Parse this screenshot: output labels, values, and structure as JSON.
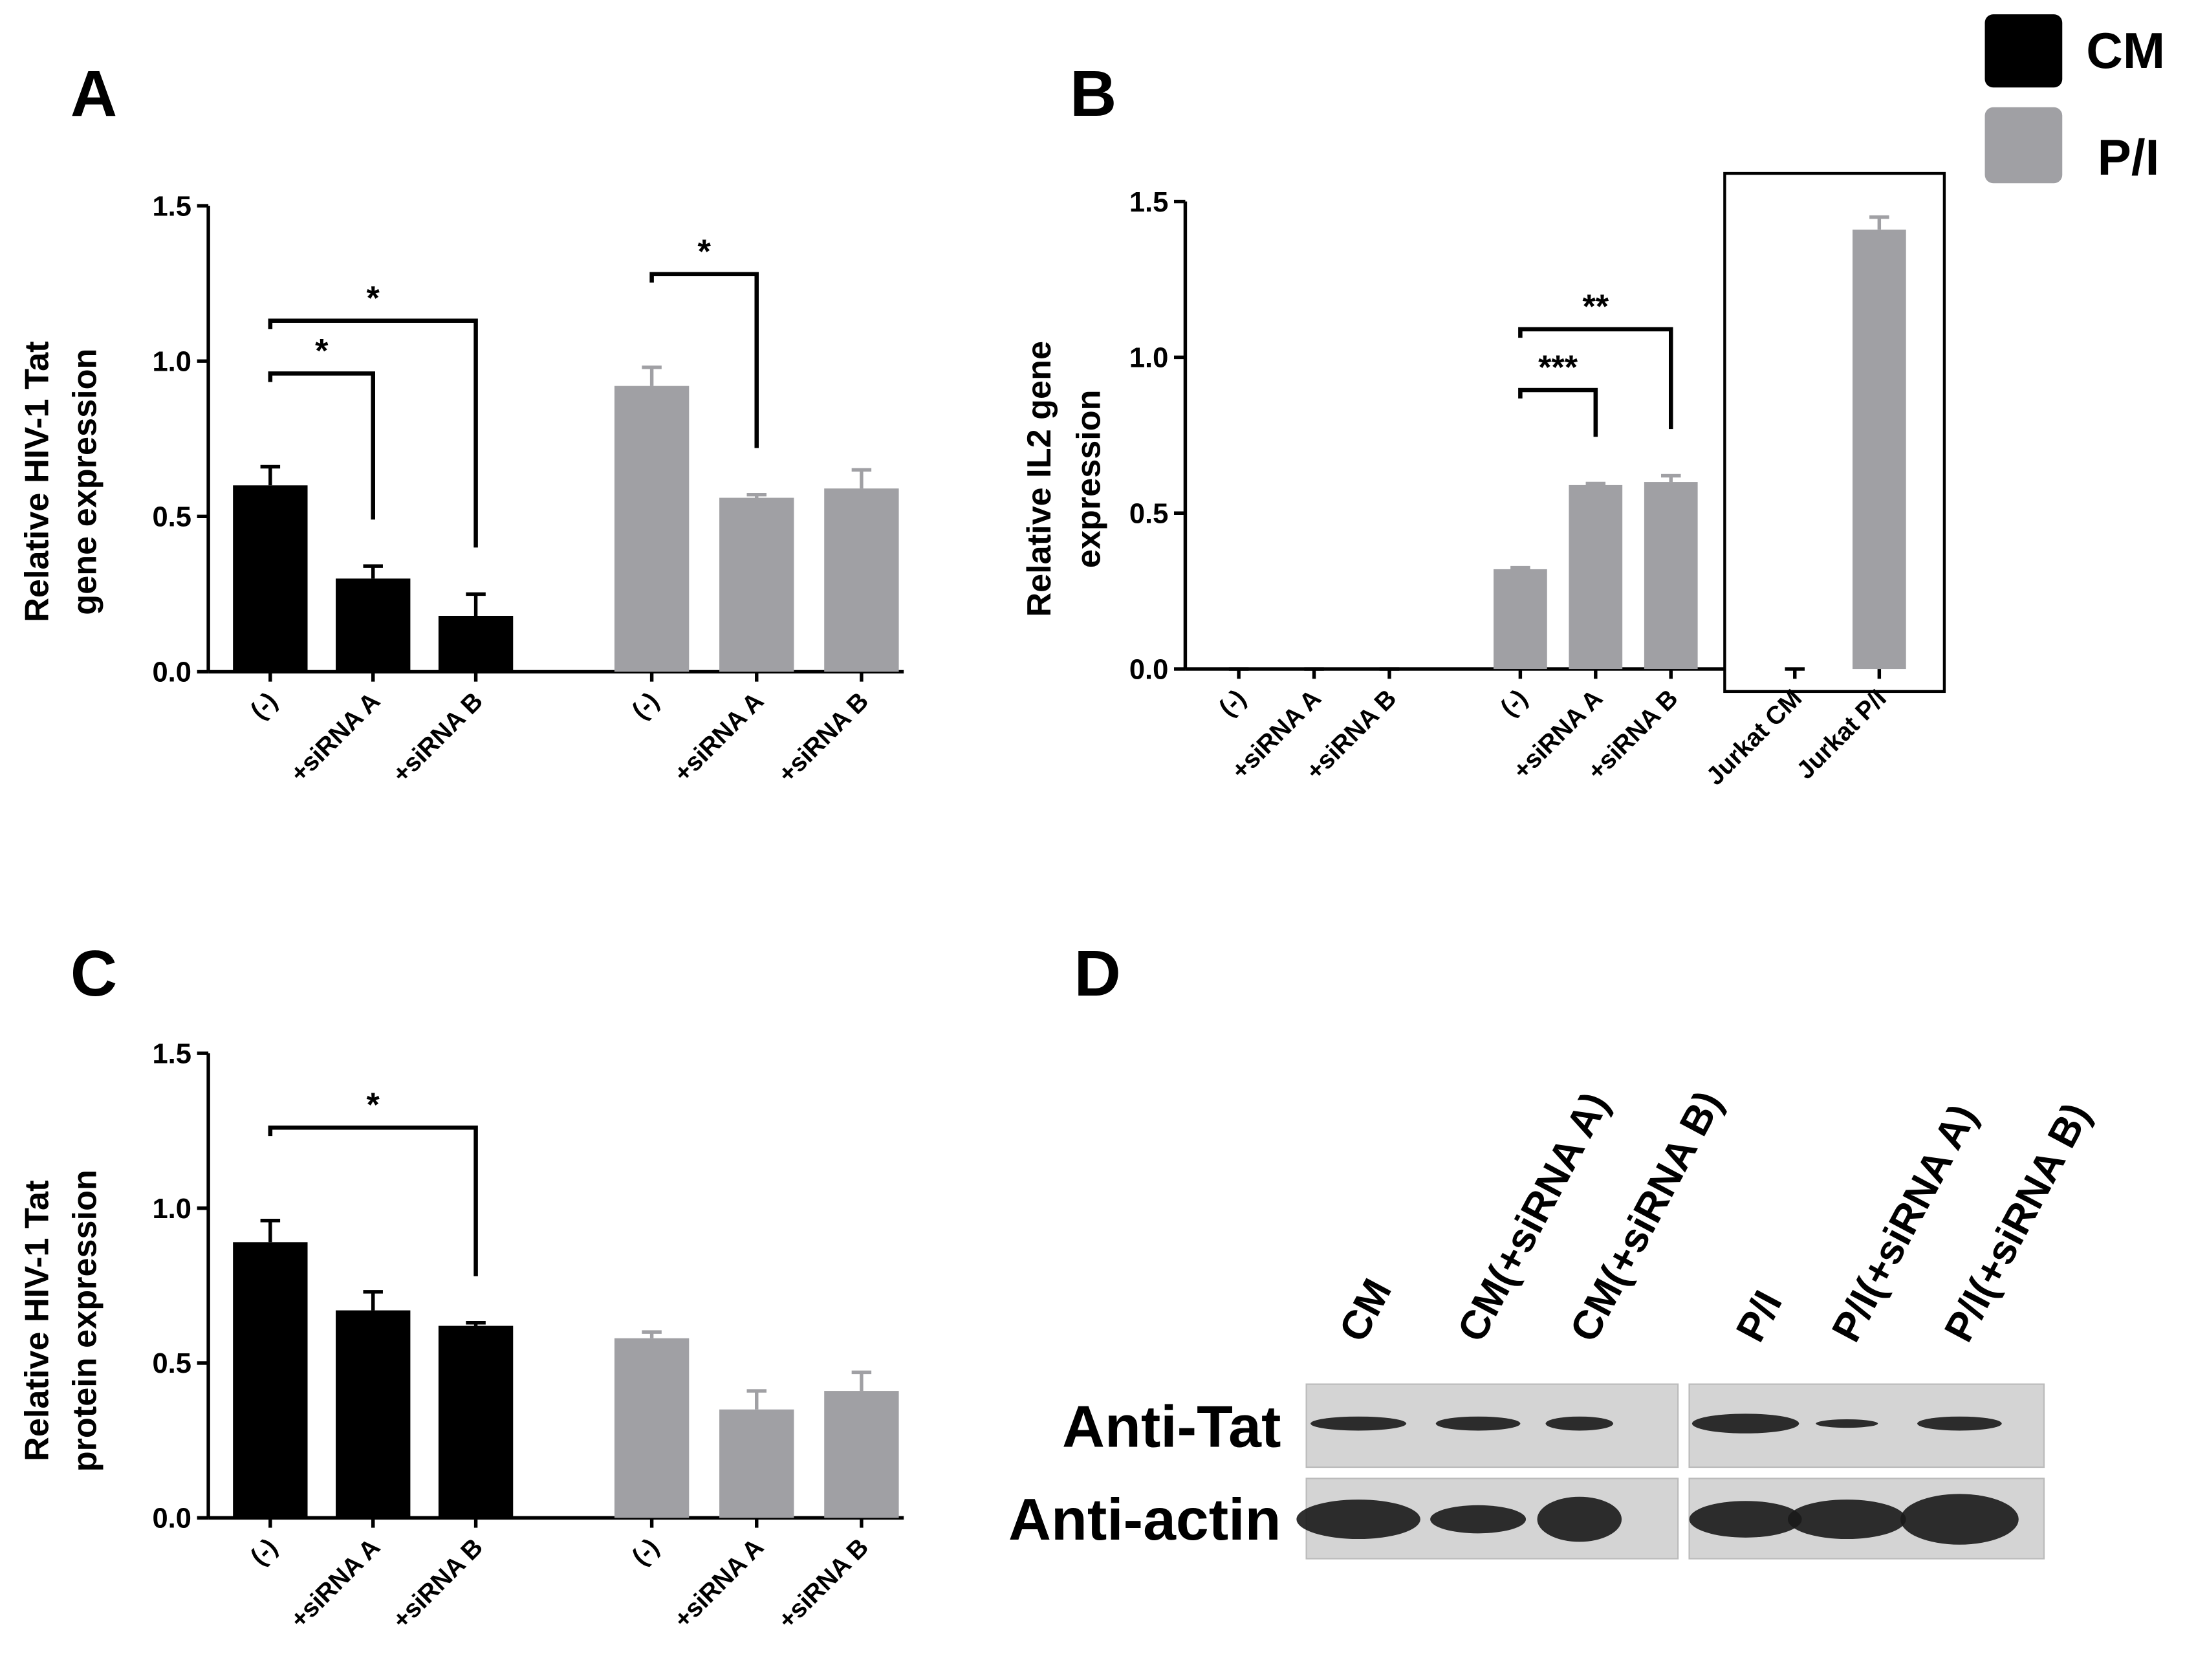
{
  "legend": [
    {
      "name": "CM",
      "color": "#000000"
    },
    {
      "name": "P/I",
      "color": "#a0a0a4"
    }
  ],
  "chart_data": [
    {
      "type": "bar",
      "panel": "A",
      "ylabel": [
        "Relative HIV-1 Tat",
        "gene expression"
      ],
      "ylim": [
        0,
        1.5
      ],
      "yticks": [
        {
          "value": 0,
          "label": "0.0"
        },
        {
          "value": 0.5,
          "label": "0.5"
        },
        {
          "value": 1,
          "label": "1.0"
        },
        {
          "value": 1.5,
          "label": "1.5"
        }
      ],
      "groups": [
        {
          "color": "#000000",
          "categories": [
            "(-)",
            "+siRNA A",
            "+siRNA B"
          ],
          "values": [
            0.6,
            0.3,
            0.18
          ],
          "errors": [
            0.06,
            0.04,
            0.07
          ]
        },
        {
          "color": "#a0a0a4",
          "categories": [
            "(-)",
            "+siRNA A",
            "+siRNA B"
          ],
          "values": [
            0.92,
            0.56,
            0.59
          ],
          "errors": [
            0.06,
            0.01,
            0.06
          ]
        }
      ],
      "significance": [
        {
          "label": "*",
          "group": 0,
          "from": 0,
          "to": 1
        },
        {
          "label": "*",
          "group": 0,
          "from": 0,
          "to": 2
        },
        {
          "label": "*",
          "group": 1,
          "from": 0,
          "to": 1
        }
      ]
    },
    {
      "type": "bar",
      "panel": "B",
      "ylabel": [
        "Relative IL2 gene",
        "expression"
      ],
      "ylim": [
        0,
        1.5
      ],
      "yticks": [
        {
          "value": 0,
          "label": "0.0"
        },
        {
          "value": 0.5,
          "label": "0.5"
        },
        {
          "value": 1,
          "label": "1.0"
        },
        {
          "value": 1.5,
          "label": "1.5"
        }
      ],
      "groups": [
        {
          "color": "#000000",
          "categories": [
            "(-)",
            "+siRNA A",
            "+siRNA B"
          ],
          "values": [
            0,
            0,
            0
          ],
          "errors": [
            0,
            0,
            0
          ]
        },
        {
          "color": "#a0a0a4",
          "categories": [
            "(-)",
            "+siRNA A",
            "+siRNA B"
          ],
          "values": [
            0.32,
            0.59,
            0.6
          ],
          "errors": [
            0.005,
            0.005,
            0.02
          ]
        },
        {
          "colors": [
            "#000000",
            "#a0a0a4"
          ],
          "categories": [
            "Jurkat CM",
            "Jurkat P/I"
          ],
          "values": [
            0,
            1.41
          ],
          "errors": [
            0,
            0.04
          ],
          "boxed": true
        }
      ],
      "significance": [
        {
          "label": "***",
          "group": 1,
          "from": 0,
          "to": 1
        },
        {
          "label": "**",
          "group": 1,
          "from": 0,
          "to": 2
        }
      ]
    },
    {
      "type": "bar",
      "panel": "C",
      "ylabel": [
        "Relative HIV-1 Tat",
        "protein expression"
      ],
      "ylim": [
        0,
        1.5
      ],
      "yticks": [
        {
          "value": 0,
          "label": "0.0"
        },
        {
          "value": 0.5,
          "label": "0.5"
        },
        {
          "value": 1,
          "label": "1.0"
        },
        {
          "value": 1.5,
          "label": "1.5"
        }
      ],
      "groups": [
        {
          "color": "#000000",
          "categories": [
            "(-)",
            "+siRNA A",
            "+siRNA B"
          ],
          "values": [
            0.89,
            0.67,
            0.62
          ],
          "errors": [
            0.07,
            0.06,
            0.01
          ]
        },
        {
          "color": "#a0a0a4",
          "categories": [
            "(-)",
            "+siRNA A",
            "+siRNA B"
          ],
          "values": [
            0.58,
            0.35,
            0.41
          ],
          "errors": [
            0.02,
            0.06,
            0.06
          ]
        }
      ],
      "significance": [
        {
          "label": "*",
          "group": 0,
          "from": 0,
          "to": 2
        }
      ]
    }
  ],
  "blot": {
    "panel": "D",
    "lanes": [
      "CM",
      "CM(+siRNA A)",
      "CM(+siRNA B)",
      "P/I",
      "P/I(+siRNA A)",
      "P/I(+siRNA B)"
    ],
    "rows": [
      "Anti-Tat",
      "Anti-actin"
    ]
  }
}
